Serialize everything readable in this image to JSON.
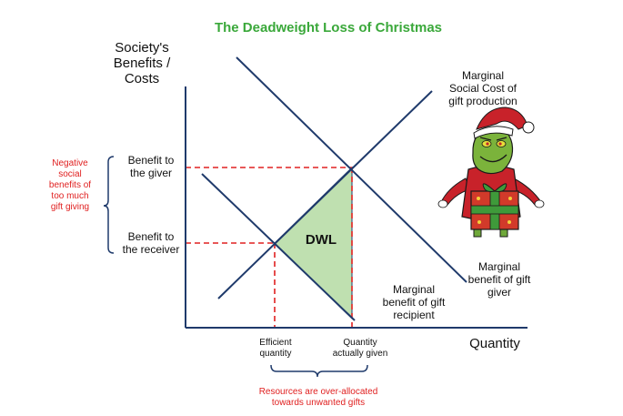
{
  "chart_data": {
    "type": "line",
    "title": "The Deadweight Loss of Christmas",
    "ylabel": [
      "Society's",
      "Benefits /",
      "Costs"
    ],
    "xlabel": "Quantity",
    "series": [
      {
        "name": [
          "Marginal",
          "Social Cost of",
          "gift production"
        ]
      },
      {
        "name": [
          "Marginal",
          "benefit of gift",
          "giver"
        ]
      },
      {
        "name": [
          "Marginal",
          "benefit of gift",
          "recipient"
        ]
      }
    ],
    "y_tick_labels": [
      [
        "Benefit to",
        "the giver"
      ],
      [
        "Benefit to",
        "the receiver"
      ]
    ],
    "x_tick_labels": [
      [
        "Efficient",
        "quantity"
      ],
      [
        "Quantity",
        "actually given"
      ]
    ],
    "shaded_area_label": "DWL",
    "left_annotation": [
      "Negative",
      "social",
      "benefits of",
      "too much",
      "gift giving"
    ],
    "bottom_annotation": [
      "Resources are over-allocated",
      "towards unwanted gifts"
    ],
    "colors": {
      "title": "#3aa83a",
      "lines": "#1f3a6b",
      "guides": "#e02020",
      "dwl_fill": "#bfe0b0",
      "annotation_text": "#e02020"
    },
    "illustration": "grinch-with-gift"
  }
}
